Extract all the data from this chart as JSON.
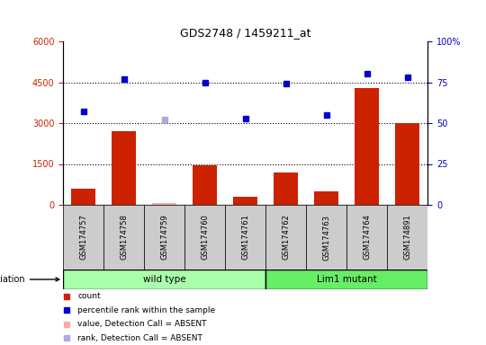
{
  "title": "GDS2748 / 1459211_at",
  "samples": [
    "GSM174757",
    "GSM174758",
    "GSM174759",
    "GSM174760",
    "GSM174761",
    "GSM174762",
    "GSM174763",
    "GSM174764",
    "GSM174891"
  ],
  "count_values": [
    600,
    2700,
    50,
    1450,
    300,
    1200,
    500,
    4300,
    3000
  ],
  "count_absent": [
    false,
    false,
    true,
    false,
    false,
    false,
    false,
    false,
    false
  ],
  "percentile_values": [
    57,
    77,
    52,
    75,
    53,
    74,
    55,
    80,
    78
  ],
  "percentile_absent": [
    false,
    false,
    true,
    false,
    false,
    false,
    false,
    false,
    false
  ],
  "wild_type_indices": [
    0,
    1,
    2,
    3,
    4
  ],
  "lim1_mutant_indices": [
    5,
    6,
    7,
    8
  ],
  "ylim_left": [
    0,
    6000
  ],
  "ylim_right": [
    0,
    100
  ],
  "yticks_left": [
    0,
    1500,
    3000,
    4500,
    6000
  ],
  "yticks_right": [
    0,
    25,
    50,
    75,
    100
  ],
  "bar_color_present": "#cc2200",
  "bar_color_absent": "#ffaaaa",
  "dot_color_present": "#0000cc",
  "dot_color_absent": "#aaaadd",
  "wild_type_color": "#aaffaa",
  "lim1_color": "#66ee66",
  "group_label_row_color": "#cccccc",
  "figsize": [
    5.4,
    3.84
  ],
  "dpi": 100
}
